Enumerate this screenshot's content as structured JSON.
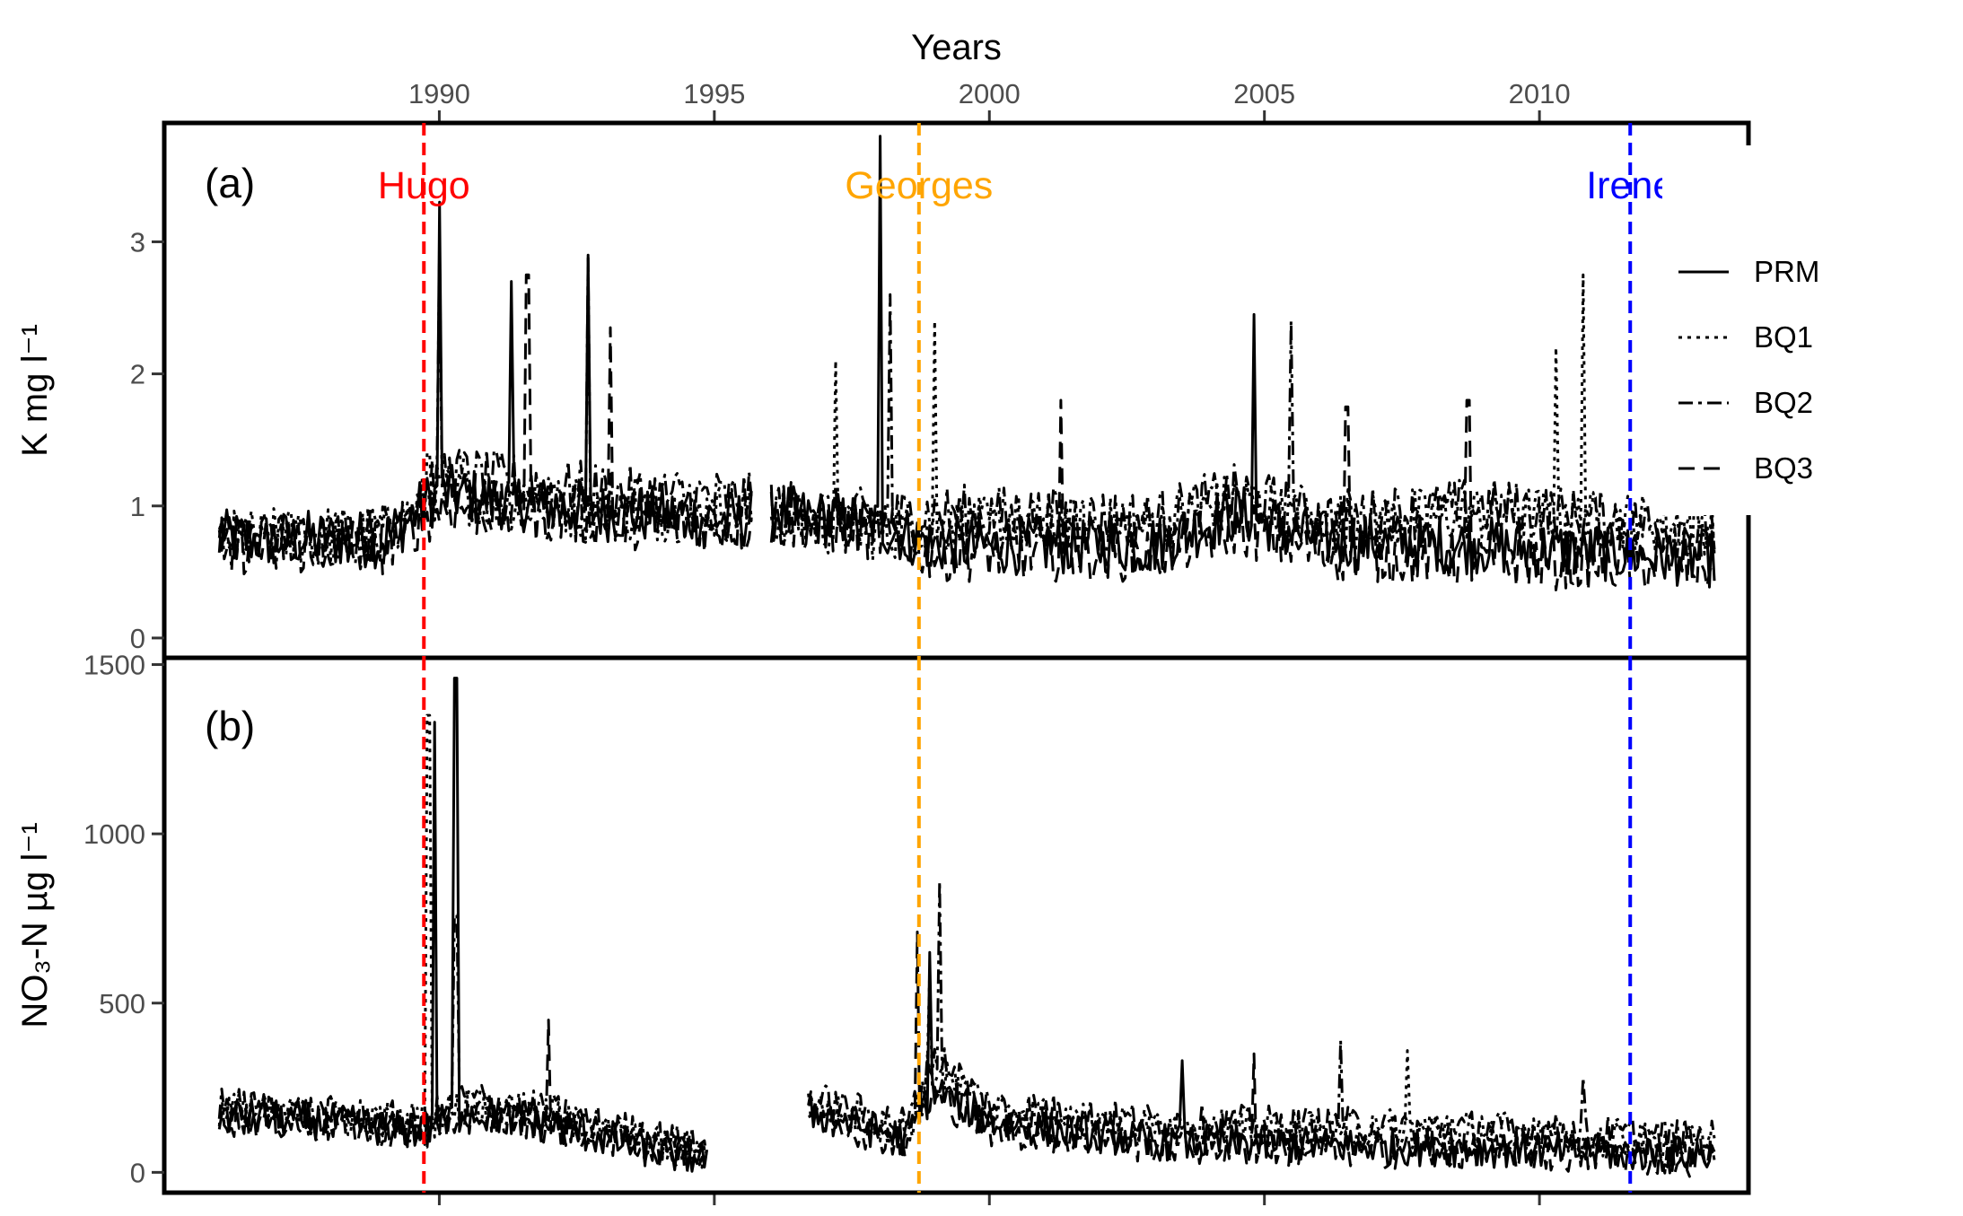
{
  "chart_data": {
    "type": "line",
    "x_axis": {
      "label": "Years",
      "position": "top",
      "ticks": [
        1990,
        1995,
        2000,
        2005,
        2010
      ],
      "range": [
        1985.0,
        2013.8
      ]
    },
    "series_names": [
      "PRM",
      "BQ1",
      "BQ2",
      "BQ3"
    ],
    "legend": {
      "position": "right",
      "entries": [
        {
          "name": "PRM",
          "dash": "solid"
        },
        {
          "name": "BQ1",
          "dash": "dotted"
        },
        {
          "name": "BQ2",
          "dash": "dot-dash"
        },
        {
          "name": "BQ3",
          "dash": "dashed"
        }
      ]
    },
    "hurricanes": [
      {
        "name": "Hugo",
        "year": 1989.72,
        "color": "#ff0000"
      },
      {
        "name": "Georges",
        "year": 1998.72,
        "color": "#ffa500"
      },
      {
        "name": "Irene",
        "year": 2011.65,
        "color": "#0000ff"
      }
    ],
    "panels": [
      {
        "id": "a",
        "panel_label": "(a)",
        "ylabel": "K mg l⁻¹",
        "ylim": [
          -0.15,
          3.9
        ],
        "yticks": [
          0,
          1,
          2,
          3
        ],
        "data_span": [
          1986.0,
          2013.2
        ],
        "gaps": [
          [
            1995.7,
            1996.0
          ]
        ],
        "series": [
          {
            "name": "PRM",
            "baseline": [
              [
                1986.0,
                0.75
              ],
              [
                1989.0,
                0.75
              ],
              [
                1990.0,
                1.1
              ],
              [
                1993.0,
                0.95
              ],
              [
                1995.5,
                0.9
              ],
              [
                1996.0,
                0.95
              ],
              [
                1998.0,
                0.85
              ],
              [
                1999.0,
                0.7
              ],
              [
                2003.0,
                0.7
              ],
              [
                2004.5,
                0.95
              ],
              [
                2006.0,
                0.75
              ],
              [
                2009.0,
                0.7
              ],
              [
                2013.2,
                0.6
              ]
            ],
            "spikes": [
              [
                1990.0,
                3.3
              ],
              [
                1991.3,
                2.7
              ],
              [
                1992.7,
                2.9
              ],
              [
                1998.0,
                3.8
              ],
              [
                2004.8,
                2.45
              ]
            ]
          },
          {
            "name": "BQ1",
            "baseline": [
              [
                1986.0,
                0.75
              ],
              [
                1989.0,
                0.8
              ],
              [
                1990.0,
                1.1
              ],
              [
                1993.0,
                0.95
              ],
              [
                1995.5,
                0.95
              ],
              [
                1996.0,
                0.9
              ],
              [
                1998.0,
                0.8
              ],
              [
                1999.0,
                0.85
              ],
              [
                2003.0,
                0.85
              ],
              [
                2004.5,
                1.05
              ],
              [
                2006.0,
                0.85
              ],
              [
                2009.0,
                0.95
              ],
              [
                2013.2,
                0.85
              ]
            ],
            "spikes": [
              [
                1989.8,
                1.4
              ],
              [
                1997.2,
                2.1
              ],
              [
                1999.0,
                2.4
              ],
              [
                2010.3,
                2.2
              ],
              [
                2010.8,
                2.75
              ]
            ]
          },
          {
            "name": "BQ2",
            "baseline": [
              [
                1986.0,
                0.7
              ],
              [
                1989.0,
                0.8
              ],
              [
                1990.0,
                1.25
              ],
              [
                1993.0,
                1.1
              ],
              [
                1995.5,
                1.05
              ],
              [
                1996.0,
                1.0
              ],
              [
                1998.0,
                0.9
              ],
              [
                1999.0,
                0.95
              ],
              [
                2003.0,
                0.9
              ],
              [
                2004.5,
                1.1
              ],
              [
                2006.0,
                0.9
              ],
              [
                2009.0,
                1.0
              ],
              [
                2013.2,
                0.8
              ]
            ],
            "spikes": [
              [
                1990.0,
                3.0
              ],
              [
                1992.7,
                2.9
              ],
              [
                1998.2,
                2.6
              ],
              [
                2005.5,
                2.4
              ]
            ]
          },
          {
            "name": "BQ3",
            "baseline": [
              [
                1986.0,
                0.7
              ],
              [
                1989.0,
                0.7
              ],
              [
                1990.0,
                1.0
              ],
              [
                1993.0,
                0.9
              ],
              [
                1995.5,
                0.85
              ],
              [
                1996.0,
                0.9
              ],
              [
                1998.0,
                0.8
              ],
              [
                1999.0,
                0.65
              ],
              [
                2003.0,
                0.65
              ],
              [
                2004.5,
                0.85
              ],
              [
                2006.0,
                0.65
              ],
              [
                2009.0,
                0.6
              ],
              [
                2013.2,
                0.55
              ]
            ],
            "spikes": [
              [
                1991.6,
                2.75
              ],
              [
                1993.1,
                2.35
              ],
              [
                2001.3,
                1.8
              ],
              [
                2006.5,
                1.75
              ],
              [
                2008.7,
                1.8
              ]
            ]
          }
        ]
      },
      {
        "id": "b",
        "panel_label": "(b)",
        "ylabel": "NO₃-N µg l⁻¹",
        "ylim": [
          -60,
          1520
        ],
        "yticks": [
          0,
          500,
          1000,
          1500
        ],
        "data_span": [
          1986.0,
          2013.2
        ],
        "gaps": [
          [
            1994.9,
            1996.7
          ]
        ],
        "series": [
          {
            "name": "PRM",
            "baseline": [
              [
                1986.0,
                170
              ],
              [
                1988.0,
                150
              ],
              [
                1989.7,
                120
              ],
              [
                1990.5,
                180
              ],
              [
                1992.0,
                140
              ],
              [
                1994.0,
                60
              ],
              [
                1994.9,
                40
              ],
              [
                1996.7,
                180
              ],
              [
                1998.5,
                100
              ],
              [
                1999.0,
                250
              ],
              [
                2000.0,
                150
              ],
              [
                2003.0,
                90
              ],
              [
                2006.0,
                80
              ],
              [
                2009.0,
                70
              ],
              [
                2013.2,
                50
              ]
            ],
            "spikes": [
              [
                1989.9,
                1330
              ],
              [
                1990.3,
                1460
              ],
              [
                1998.9,
                650
              ],
              [
                2003.5,
                330
              ]
            ]
          },
          {
            "name": "BQ1",
            "baseline": [
              [
                1986.0,
                190
              ],
              [
                1988.0,
                160
              ],
              [
                1989.7,
                140
              ],
              [
                1990.5,
                200
              ],
              [
                1992.0,
                160
              ],
              [
                1994.0,
                80
              ],
              [
                1994.9,
                60
              ],
              [
                1996.7,
                200
              ],
              [
                1998.5,
                120
              ],
              [
                1999.0,
                300
              ],
              [
                2000.0,
                180
              ],
              [
                2003.0,
                120
              ],
              [
                2006.0,
                120
              ],
              [
                2009.0,
                110
              ],
              [
                2013.2,
                80
              ]
            ],
            "spikes": [
              [
                1989.8,
                1350
              ],
              [
                1998.9,
                600
              ],
              [
                2007.6,
                360
              ]
            ]
          },
          {
            "name": "BQ2",
            "baseline": [
              [
                1986.0,
                200
              ],
              [
                1988.0,
                170
              ],
              [
                1989.7,
                150
              ],
              [
                1990.5,
                220
              ],
              [
                1992.0,
                180
              ],
              [
                1994.0,
                100
              ],
              [
                1994.9,
                70
              ],
              [
                1996.7,
                220
              ],
              [
                1998.5,
                140
              ],
              [
                1999.0,
                350
              ],
              [
                2000.0,
                200
              ],
              [
                2003.0,
                150
              ],
              [
                2006.0,
                140
              ],
              [
                2009.0,
                130
              ],
              [
                2013.2,
                100
              ]
            ],
            "spikes": [
              [
                1990.3,
                760
              ],
              [
                1999.1,
                860
              ],
              [
                2006.4,
                390
              ],
              [
                2010.8,
                280
              ]
            ]
          },
          {
            "name": "BQ3",
            "baseline": [
              [
                1986.0,
                160
              ],
              [
                1988.0,
                140
              ],
              [
                1989.7,
                110
              ],
              [
                1990.5,
                170
              ],
              [
                1992.0,
                140
              ],
              [
                1994.0,
                70
              ],
              [
                1994.9,
                40
              ],
              [
                1996.7,
                170
              ],
              [
                1998.5,
                90
              ],
              [
                1999.0,
                230
              ],
              [
                2000.0,
                130
              ],
              [
                2003.0,
                80
              ],
              [
                2006.0,
                70
              ],
              [
                2009.0,
                60
              ],
              [
                2013.2,
                40
              ]
            ],
            "spikes": [
              [
                1992.0,
                450
              ],
              [
                1998.7,
                710
              ],
              [
                2004.8,
                350
              ]
            ]
          }
        ]
      }
    ]
  }
}
